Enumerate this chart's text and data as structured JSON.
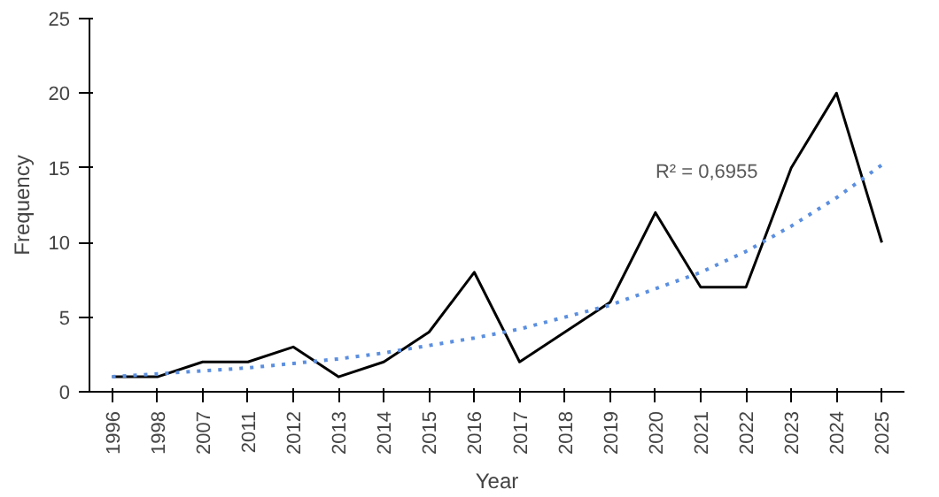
{
  "chart_data": {
    "type": "line",
    "xlabel": "Year",
    "ylabel": "Frequency",
    "categories": [
      "1996",
      "1998",
      "2007",
      "2011",
      "2012",
      "2013",
      "2014",
      "2015",
      "2016",
      "2017",
      "2018",
      "2019",
      "2020",
      "2021",
      "2022",
      "2023",
      "2024",
      "2025"
    ],
    "series": [
      {
        "color": "#000000",
        "values": [
          1,
          1,
          2,
          2,
          3,
          1,
          2,
          4,
          8,
          2,
          4,
          6,
          12,
          7,
          7,
          15,
          20,
          10
        ],
        "line_style": "solid"
      },
      {
        "type": "line",
        "color": "#5b8fe0",
        "line_style": "dotted",
        "values": [
          1.0,
          1.2,
          1.4,
          1.6,
          1.9,
          2.2,
          2.6,
          3.1,
          3.6,
          4.2,
          5.0,
          5.8,
          6.9,
          8.0,
          9.4,
          11.1,
          13.0,
          15.2
        ]
      }
    ],
    "ylim": [
      0,
      25
    ],
    "yticks": [
      0,
      5,
      10,
      15,
      20,
      25
    ],
    "grid": false,
    "marker": "none",
    "annotations": [
      "R² = 0,6955"
    ]
  }
}
